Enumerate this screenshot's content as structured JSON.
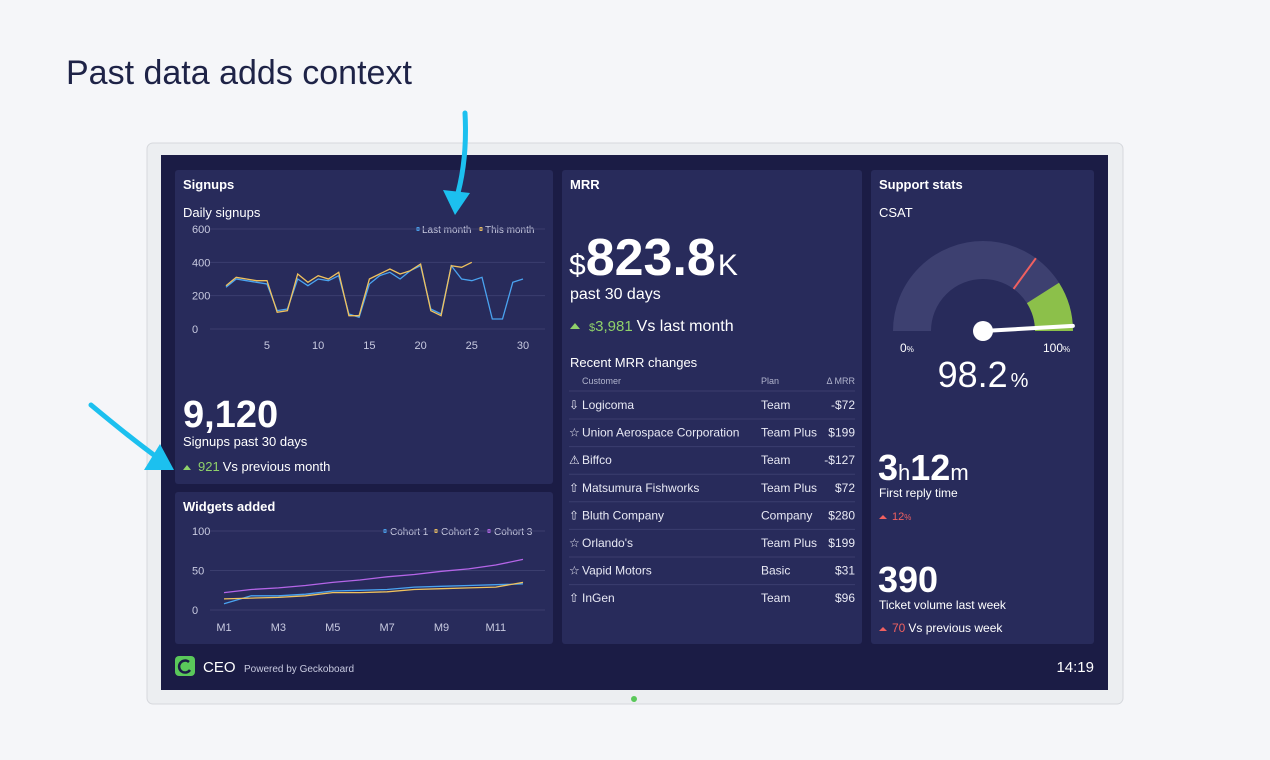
{
  "heading": "Past data adds context",
  "signups": {
    "title": "Signups",
    "chart": {
      "type": "line",
      "title": "Daily signups",
      "x": [
        1,
        2,
        3,
        4,
        5,
        6,
        7,
        8,
        9,
        10,
        11,
        12,
        13,
        14,
        15,
        16,
        17,
        18,
        19,
        20,
        21,
        22,
        23,
        24,
        25,
        26,
        27,
        28,
        29,
        30
      ],
      "xlim": [
        1,
        30
      ],
      "xticks": [
        5,
        10,
        15,
        20,
        25,
        30
      ],
      "ylim": [
        0,
        600
      ],
      "yticks": [
        0,
        200,
        400,
        600
      ],
      "grid": true,
      "series": [
        {
          "name": "Last month",
          "color": "#4aa3f0",
          "values": [
            250,
            300,
            290,
            280,
            270,
            110,
            120,
            300,
            260,
            300,
            290,
            320,
            90,
            70,
            270,
            320,
            340,
            300,
            350,
            380,
            120,
            90,
            380,
            300,
            290,
            310,
            60,
            60,
            280,
            300
          ]
        },
        {
          "name": "This month",
          "color": "#f0c25e",
          "values": [
            260,
            310,
            300,
            290,
            290,
            100,
            110,
            330,
            280,
            320,
            300,
            340,
            80,
            80,
            300,
            330,
            360,
            330,
            350,
            390,
            110,
            80,
            380,
            370,
            400,
            null,
            null,
            null,
            null,
            null
          ]
        }
      ]
    },
    "total": "9,120",
    "total_label": "Signups past 30 days",
    "change": "921",
    "change_label": "Vs previous month"
  },
  "widgets": {
    "title": "Widgets added",
    "chart": {
      "type": "line",
      "categories": [
        "M1",
        null,
        "M3",
        null,
        "M5",
        null,
        "M7",
        null,
        "M9",
        null,
        "M11",
        null
      ],
      "ylim": [
        0,
        100
      ],
      "yticks": [
        0,
        50,
        100
      ],
      "grid": true,
      "series": [
        {
          "name": "Cohort 1",
          "color": "#4aa3f0",
          "values": [
            8,
            18,
            18,
            20,
            24,
            25,
            26,
            29,
            30,
            31,
            32,
            33
          ]
        },
        {
          "name": "Cohort 2",
          "color": "#f0c25e",
          "values": [
            14,
            15,
            16,
            18,
            22,
            22,
            23,
            26,
            27,
            28,
            29,
            35
          ]
        },
        {
          "name": "Cohort 3",
          "color": "#b565e8",
          "values": [
            22,
            26,
            28,
            31,
            35,
            38,
            42,
            45,
            49,
            52,
            57,
            64
          ]
        }
      ]
    }
  },
  "mrr": {
    "title": "MRR",
    "currency": "$",
    "value": "823.8",
    "suffix": "K",
    "period": "past 30 days",
    "change": "3,981",
    "change_label": "Vs last month",
    "table": {
      "title": "Recent MRR changes",
      "columns": [
        "Customer",
        "Plan",
        "Δ MRR"
      ],
      "rows": [
        {
          "icon": "⇩",
          "customer": "Logicoma",
          "plan": "Team",
          "delta": "-$72"
        },
        {
          "icon": "☆",
          "customer": "Union Aerospace Corporation",
          "plan": "Team Plus",
          "delta": "$199"
        },
        {
          "icon": "⚠",
          "customer": "Biffco",
          "plan": "Team",
          "delta": "-$127"
        },
        {
          "icon": "⇧",
          "customer": "Matsumura Fishworks",
          "plan": "Team Plus",
          "delta": "$72"
        },
        {
          "icon": "⇧",
          "customer": "Bluth Company",
          "plan": "Company",
          "delta": "$280"
        },
        {
          "icon": "☆",
          "customer": "Orlando's",
          "plan": "Team Plus",
          "delta": "$199"
        },
        {
          "icon": "☆",
          "customer": "Vapid Motors",
          "plan": "Basic",
          "delta": "$31"
        },
        {
          "icon": "⇧",
          "customer": "InGen",
          "plan": "Team",
          "delta": "$96"
        }
      ]
    }
  },
  "support": {
    "title": "Support stats",
    "csat": {
      "type": "gauge",
      "title": "CSAT",
      "min": 0,
      "max": 100,
      "value": 98.2,
      "previous": 70,
      "unit": "%"
    },
    "reply": {
      "hours": "3",
      "h": "h",
      "minutes": "12",
      "m": "m",
      "label": "First reply time",
      "change": "12",
      "unit": "%"
    },
    "tickets": {
      "value": "390",
      "label": "Ticket volume last week",
      "change": "70",
      "change_label": "Vs previous week"
    }
  },
  "footer": {
    "name": "CEO",
    "powered": "Powered by Geckoboard",
    "time": "14:19"
  }
}
